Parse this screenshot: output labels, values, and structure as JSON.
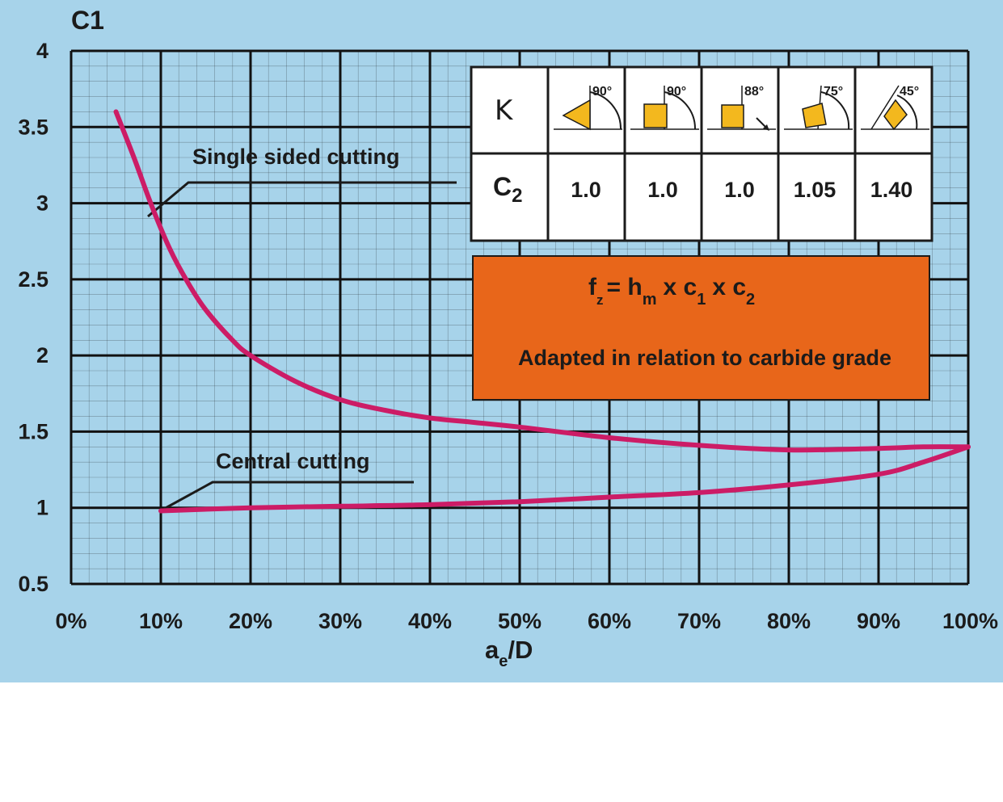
{
  "chart_data": {
    "type": "line",
    "ylabel": "C1",
    "xlabel_main": "a",
    "xlabel_sub": "e",
    "xlabel_tail": "/D",
    "xlim": [
      0,
      100
    ],
    "ylim": [
      0.5,
      4
    ],
    "grid": true,
    "x_ticks": [
      "0%",
      "10%",
      "20%",
      "30%",
      "40%",
      "50%",
      "60%",
      "70%",
      "80%",
      "90%",
      "100%"
    ],
    "y_ticks": [
      "4",
      "3.5",
      "3",
      "2.5",
      "2",
      "1.5",
      "1",
      "0.5"
    ],
    "y_tick_values": [
      4,
      3.5,
      3,
      2.5,
      2,
      1.5,
      1,
      0.5
    ],
    "series": [
      {
        "name": "Single sided cutting",
        "x": [
          5,
          7,
          9,
          11,
          13,
          15,
          18,
          20,
          25,
          30,
          35,
          40,
          45,
          50,
          60,
          70,
          80,
          90,
          95,
          100
        ],
        "y": [
          3.6,
          3.3,
          2.98,
          2.7,
          2.48,
          2.3,
          2.1,
          2.0,
          1.83,
          1.71,
          1.64,
          1.59,
          1.56,
          1.53,
          1.46,
          1.41,
          1.38,
          1.39,
          1.4,
          1.4
        ]
      },
      {
        "name": "Central cutting",
        "x": [
          10,
          20,
          30,
          40,
          50,
          60,
          70,
          80,
          90,
          95,
          100
        ],
        "y": [
          0.98,
          1.0,
          1.01,
          1.02,
          1.04,
          1.07,
          1.1,
          1.15,
          1.22,
          1.3,
          1.4
        ]
      }
    ],
    "series_color": "#cc1c66"
  },
  "table": {
    "row1_label": "K",
    "row2_label": "C",
    "row2_label_sub": "2",
    "angles": [
      "90°",
      "90°",
      "88°",
      "75°",
      "45°"
    ],
    "c2_values": [
      "1.0",
      "1.0",
      "1.0",
      "1.05",
      "1.40"
    ]
  },
  "formula_box": {
    "f": "f",
    "z": "z",
    "eq_h": "= h",
    "m": "m",
    "x_c": "x c",
    "one": "1",
    "x_c2": "x c",
    "two": "2",
    "note": "Adapted in relation to carbide grade",
    "color": "#e8661a"
  },
  "colors": {
    "background": "#a7d3ea",
    "grid": "#111111",
    "insert": "#f3b81e"
  }
}
